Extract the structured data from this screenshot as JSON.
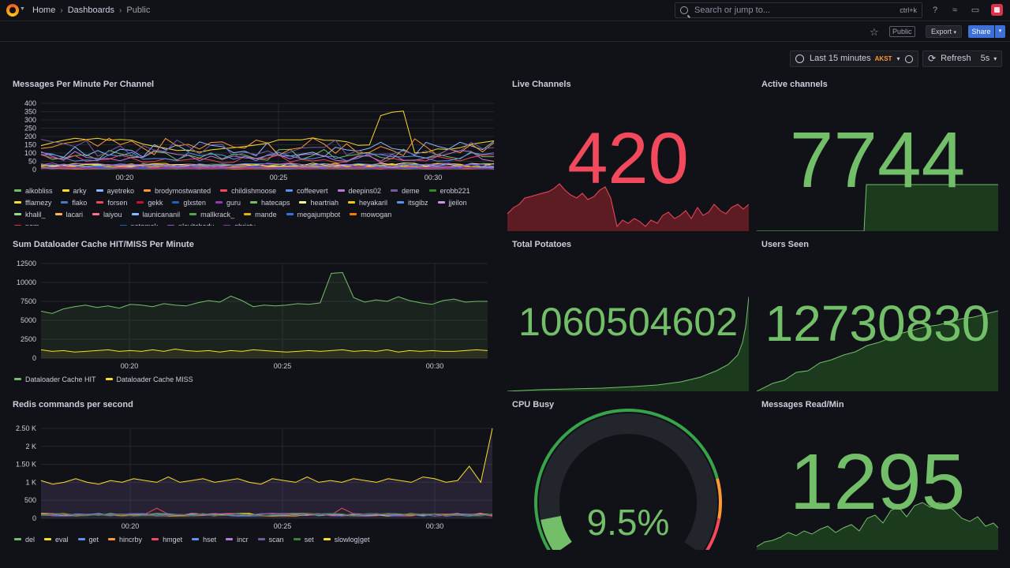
{
  "breadcrumb": {
    "home": "Home",
    "dashboards": "Dashboards",
    "current": "Public"
  },
  "search": {
    "placeholder": "Search or jump to...",
    "shortcut": "ctrl+k"
  },
  "toolbar": {
    "public_badge": "Public",
    "export_label": "Export",
    "share_label": "Share"
  },
  "timepicker": {
    "range": "Last 15 minutes",
    "timezone": "AKST",
    "refresh_label": "Refresh",
    "interval": "5s"
  },
  "colors": {
    "green": "#73bf69",
    "red": "#f2495c",
    "yellow": "#fade2a",
    "accent_blue": "#3d71d9"
  },
  "panels": {
    "messages_per_minute": {
      "title": "Messages Per Minute Per Channel",
      "legend": [
        {
          "name": "alkobliss",
          "color": "#73bf69"
        },
        {
          "name": "arky",
          "color": "#fade2a"
        },
        {
          "name": "ayetreko",
          "color": "#8ab8ff"
        },
        {
          "name": "brodymostwanted",
          "color": "#ff9830"
        },
        {
          "name": "childishmoose",
          "color": "#f2495c"
        },
        {
          "name": "coffeevert",
          "color": "#5794f2"
        },
        {
          "name": "deepins02",
          "color": "#b877d9"
        },
        {
          "name": "deme",
          "color": "#705da0"
        },
        {
          "name": "erobb221",
          "color": "#37872d"
        },
        {
          "name": "fflamezy",
          "color": "#fade2a"
        },
        {
          "name": "flako",
          "color": "#447ebc"
        },
        {
          "name": "forsen",
          "color": "#f2495c"
        },
        {
          "name": "gekk",
          "color": "#c4162a"
        },
        {
          "name": "glxsten",
          "color": "#1f60c4"
        },
        {
          "name": "guru",
          "color": "#8f3bb8"
        },
        {
          "name": "hatecaps",
          "color": "#73bf69"
        },
        {
          "name": "heartriah",
          "color": "#fff899"
        },
        {
          "name": "heyakaril",
          "color": "#f2cc0c"
        },
        {
          "name": "itsgibz",
          "color": "#5794f2"
        },
        {
          "name": "jjeilon",
          "color": "#ca95e5"
        },
        {
          "name": "khalil_",
          "color": "#96d98d"
        },
        {
          "name": "lacari",
          "color": "#ffb357"
        },
        {
          "name": "laiyou",
          "color": "#ff7383"
        },
        {
          "name": "launicananil",
          "color": "#8ab8ff"
        },
        {
          "name": "mallkrack_",
          "color": "#56a64b"
        },
        {
          "name": "mande",
          "color": "#e0b400"
        },
        {
          "name": "megajumpbot",
          "color": "#3274d9"
        },
        {
          "name": "mowogan",
          "color": "#ff780a"
        },
        {
          "name": "nam__________________",
          "color": "#e02f44"
        },
        {
          "name": "natemek",
          "color": "#1f60c4"
        },
        {
          "name": "playitshady",
          "color": "#a352cc"
        },
        {
          "name": "qhristv",
          "color": "#8f3bb8"
        }
      ],
      "x_ticks": [
        "00:20",
        "00:25",
        "00:30"
      ],
      "y_ticks": [
        "0",
        "50",
        "100",
        "150",
        "200",
        "250",
        "300",
        "350",
        "400"
      ]
    },
    "live_channels": {
      "title": "Live Channels",
      "value": "420"
    },
    "active_channels": {
      "title": "Active channels",
      "value": "7744"
    },
    "dataloader": {
      "title": "Sum Dataloader Cache HIT/MISS Per Minute",
      "legend": [
        {
          "name": "Dataloader Cache HIT",
          "color": "#73bf69"
        },
        {
          "name": "Dataloader Cache MISS",
          "color": "#fade2a"
        }
      ],
      "x_ticks": [
        "00:20",
        "00:25",
        "00:30"
      ],
      "y_ticks": [
        "0",
        "2500",
        "5000",
        "7500",
        "10000",
        "12500"
      ]
    },
    "total_potatoes": {
      "title": "Total Potatoes",
      "value": "1060504602"
    },
    "users_seen": {
      "title": "Users Seen",
      "value": "12730830"
    },
    "redis": {
      "title": "Redis commands per second",
      "legend": [
        {
          "name": "del",
          "color": "#73bf69"
        },
        {
          "name": "eval",
          "color": "#fade2a"
        },
        {
          "name": "get",
          "color": "#5794f2"
        },
        {
          "name": "hincrby",
          "color": "#ff9830"
        },
        {
          "name": "hmget",
          "color": "#f2495c"
        },
        {
          "name": "hset",
          "color": "#5794f2"
        },
        {
          "name": "incr",
          "color": "#b877d9"
        },
        {
          "name": "scan",
          "color": "#705da0"
        },
        {
          "name": "set",
          "color": "#37872d"
        },
        {
          "name": "slowlog|get",
          "color": "#fade2a"
        }
      ],
      "x_ticks": [
        "00:20",
        "00:25",
        "00:30"
      ],
      "y_ticks": [
        "0",
        "500",
        "1 K",
        "1.50 K",
        "2 K",
        "2.50 K"
      ]
    },
    "cpu_busy": {
      "title": "CPU Busy",
      "value": "9.5%",
      "percent": 9.5
    },
    "messages_read": {
      "title": "Messages Read/Min",
      "value": "1295"
    }
  }
}
